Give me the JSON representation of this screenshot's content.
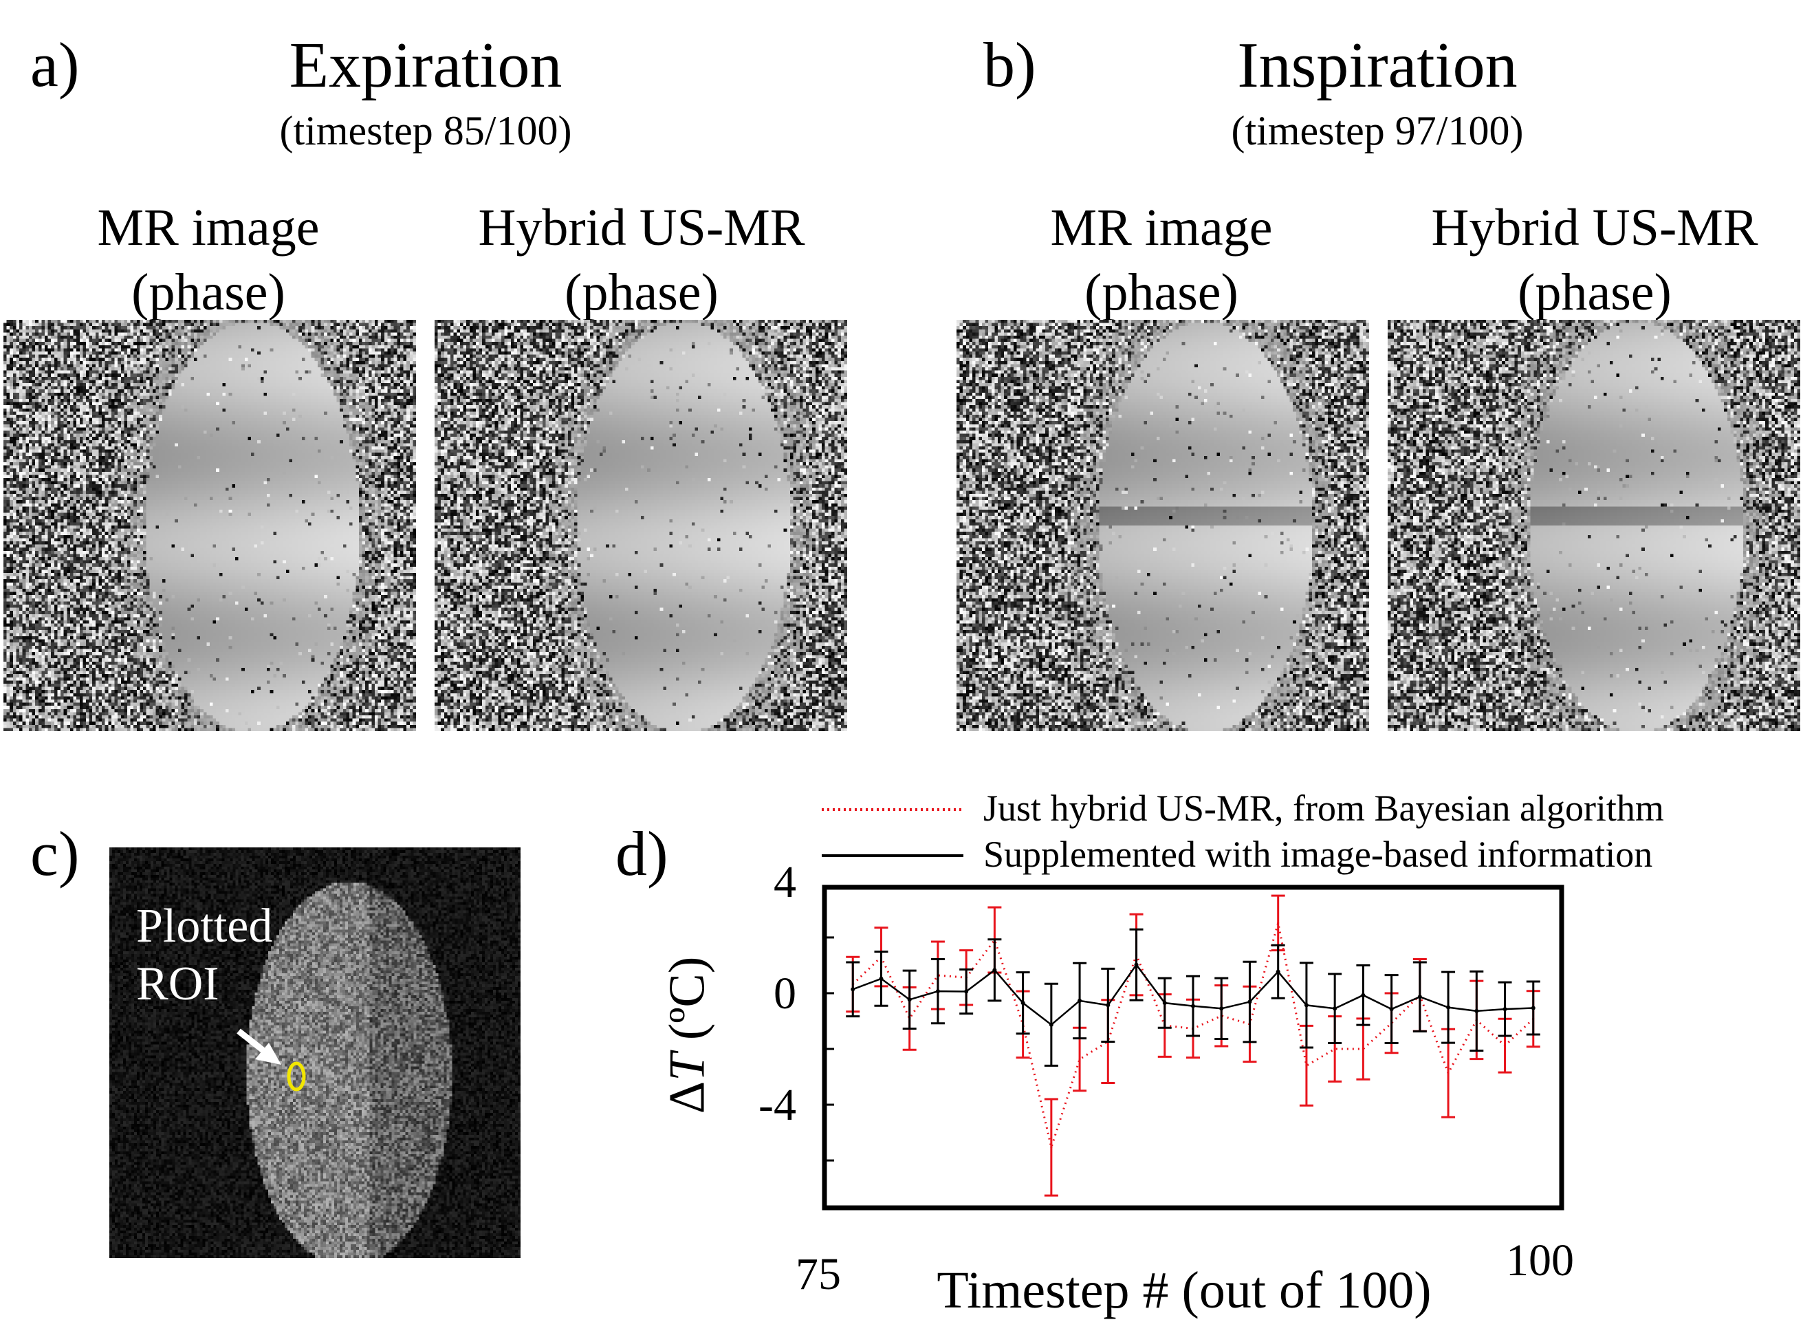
{
  "panel_a": {
    "label": "a)",
    "title": "Expiration",
    "subtitle": "(timestep 85/100)",
    "images": [
      {
        "caption1": "MR image",
        "caption2": "(phase)"
      },
      {
        "caption1": "Hybrid US-MR",
        "caption2": "(phase)"
      }
    ]
  },
  "panel_b": {
    "label": "b)",
    "title": "Inspiration",
    "subtitle": "(timestep 97/100)",
    "images": [
      {
        "caption1": "MR image",
        "caption2": "(phase)"
      },
      {
        "caption1": "Hybrid US-MR",
        "caption2": "(phase)"
      }
    ]
  },
  "panel_c": {
    "label": "c)",
    "annotation_line1": "Plotted",
    "annotation_line2": "ROI",
    "roi_color": "#f2e600"
  },
  "panel_d": {
    "label": "d)"
  },
  "chart_data": {
    "type": "line",
    "xlabel": "Timestep # (out of 100)",
    "ylabel_delta": "Δ",
    "ylabel_var": "T",
    "ylabel_unit": " (ºC)",
    "xlim": [
      75,
      101
    ],
    "ylim": [
      -7.7,
      3.8
    ],
    "x_tick_labels": [
      "75",
      "100"
    ],
    "y_ticks": [
      2,
      0,
      -2,
      -4,
      -6
    ],
    "y_tick_labels": [
      {
        "value": 4,
        "text": "4"
      },
      {
        "value": 0,
        "text": "0"
      },
      {
        "value": -4,
        "text": "-4"
      }
    ],
    "legend_position": "top (above plot)",
    "x": [
      76,
      77,
      78,
      79,
      80,
      81,
      82,
      83,
      84,
      85,
      86,
      87,
      88,
      89,
      90,
      91,
      92,
      93,
      94,
      95,
      96,
      97,
      98,
      99,
      100
    ],
    "series": [
      {
        "name": "Just hybrid US-MR, from Bayesian algorithm",
        "color": "#e8141c",
        "style": "dotted",
        "values": [
          0.32,
          1.3,
          -0.91,
          0.64,
          0.56,
          1.91,
          -1.12,
          -5.53,
          -2.37,
          -1.73,
          1.38,
          -1.16,
          -1.27,
          -0.81,
          -1.11,
          2.52,
          -2.6,
          -2.0,
          -2.0,
          -1.07,
          -0.07,
          -2.87,
          -0.96,
          -1.88,
          -0.92
        ],
        "errors": [
          0.98,
          1.05,
          1.12,
          1.21,
          0.98,
          1.17,
          1.19,
          1.73,
          1.13,
          1.49,
          1.45,
          1.12,
          1.04,
          1.09,
          1.35,
          0.98,
          1.43,
          1.17,
          1.09,
          1.07,
          1.29,
          1.58,
          1.4,
          0.96,
          1.0
        ]
      },
      {
        "name": "Supplemented with image-based information",
        "color": "#000000",
        "style": "solid",
        "values": [
          0.14,
          0.52,
          -0.23,
          0.07,
          0.06,
          0.83,
          -0.35,
          -1.13,
          -0.27,
          -0.43,
          1.02,
          -0.35,
          -0.46,
          -0.55,
          -0.31,
          0.77,
          -0.43,
          -0.55,
          -0.07,
          -0.57,
          -0.13,
          -0.51,
          -0.64,
          -0.57,
          -0.53
        ],
        "errors": [
          0.97,
          0.97,
          1.04,
          1.15,
          0.79,
          1.1,
          1.1,
          1.47,
          1.35,
          1.31,
          1.27,
          0.89,
          1.07,
          1.09,
          1.44,
          0.95,
          1.52,
          1.24,
          1.07,
          1.22,
          1.24,
          1.27,
          1.42,
          0.96,
          0.95
        ]
      }
    ]
  }
}
